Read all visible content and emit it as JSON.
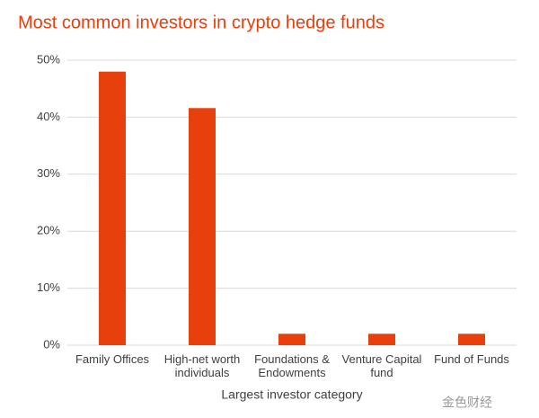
{
  "chart_data": {
    "type": "bar",
    "title": "Most common investors in crypto hedge funds",
    "categories": [
      "Family Offices",
      "High-net worth\nindividuals",
      "Foundations &\nEndowments",
      "Venture Capital\nfund",
      "Fund of Funds"
    ],
    "values": [
      48,
      41.6,
      2,
      2,
      2
    ],
    "color": "#e8400c",
    "x_label": "Largest investor category",
    "ylim": [
      0,
      50
    ],
    "yticks": [
      {
        "value": 0,
        "label": "0%"
      },
      {
        "value": 10,
        "label": "10%"
      },
      {
        "value": 20,
        "label": "20%"
      },
      {
        "value": 30,
        "label": "30%"
      },
      {
        "value": 40,
        "label": "40%"
      },
      {
        "value": 50,
        "label": "50%"
      }
    ],
    "grid": true
  },
  "watermark": "金色财经"
}
